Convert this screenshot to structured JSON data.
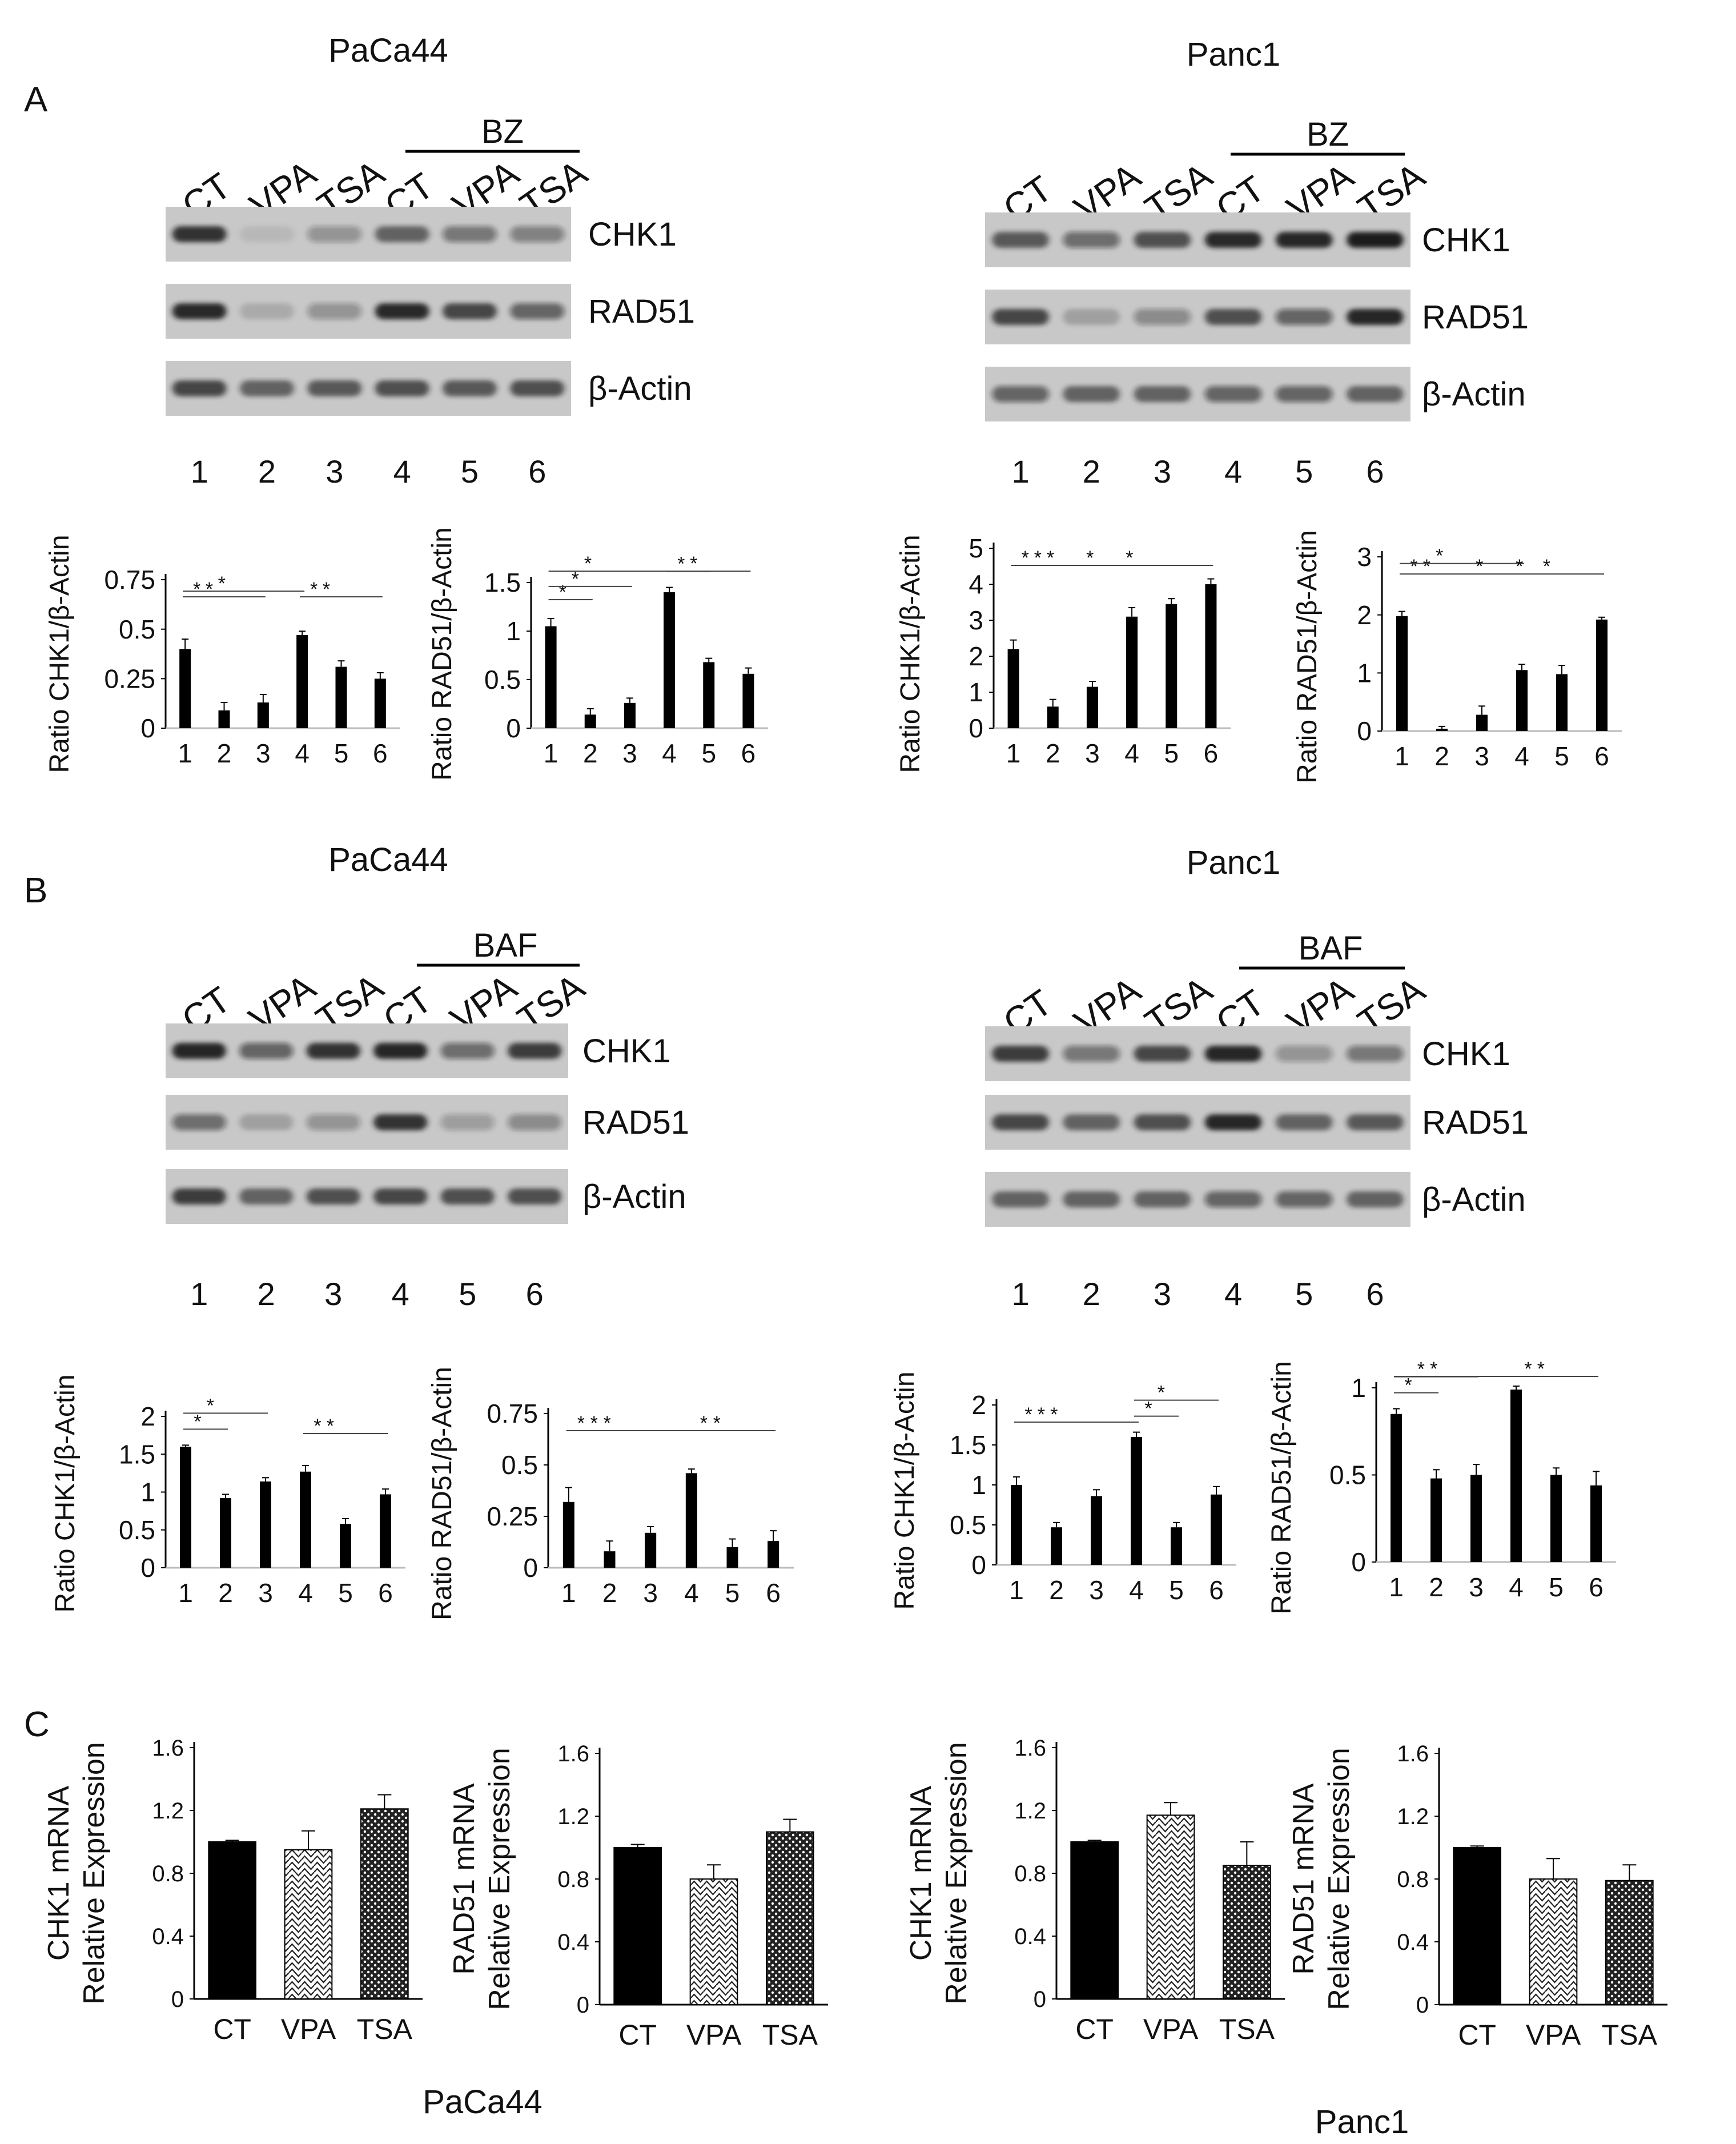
{
  "panel_labels": [
    "A",
    "B",
    "C"
  ],
  "cell_lines": [
    "PaCa44",
    "Panc1"
  ],
  "lane_labels": [
    "CT",
    "VPA",
    "TSA",
    "CT",
    "VPA",
    "TSA"
  ],
  "lane_numbers": [
    "1",
    "2",
    "3",
    "4",
    "5",
    "6"
  ],
  "protein_labels": [
    "CHK1",
    "RAD51",
    "β-Actin"
  ],
  "colors": {
    "bar": "#000000",
    "sig_line": "#444444",
    "blot_bg": "#c8c8c8",
    "band": "#1a1a1a"
  },
  "blots": [
    {
      "panel": "A",
      "cell": "PaCa44",
      "treatment": "BZ",
      "intensity": {
        "CHK1": [
          0.85,
          0.08,
          0.3,
          0.6,
          0.45,
          0.4
        ],
        "RAD51": [
          0.9,
          0.15,
          0.3,
          0.9,
          0.75,
          0.55
        ],
        "β-Actin": [
          0.75,
          0.6,
          0.65,
          0.7,
          0.65,
          0.7
        ]
      }
    },
    {
      "panel": "A",
      "cell": "Panc1",
      "treatment": "BZ",
      "intensity": {
        "CHK1": [
          0.65,
          0.5,
          0.7,
          0.9,
          0.95,
          1.0
        ],
        "RAD51": [
          0.75,
          0.2,
          0.35,
          0.7,
          0.55,
          0.95
        ],
        "β-Actin": [
          0.55,
          0.6,
          0.6,
          0.55,
          0.55,
          0.6
        ]
      }
    },
    {
      "panel": "B",
      "cell": "PaCa44",
      "treatment": "BAF",
      "intensity": {
        "CHK1": [
          0.95,
          0.55,
          0.85,
          0.95,
          0.5,
          0.8
        ],
        "RAD51": [
          0.5,
          0.2,
          0.3,
          0.85,
          0.25,
          0.35
        ],
        "β-Actin": [
          0.8,
          0.6,
          0.7,
          0.75,
          0.7,
          0.7
        ]
      }
    },
    {
      "panel": "B",
      "cell": "Panc1",
      "treatment": "BAF",
      "intensity": {
        "CHK1": [
          0.8,
          0.45,
          0.75,
          0.95,
          0.3,
          0.45
        ],
        "RAD51": [
          0.75,
          0.6,
          0.7,
          0.95,
          0.6,
          0.65
        ],
        "β-Actin": [
          0.6,
          0.6,
          0.6,
          0.55,
          0.55,
          0.6
        ]
      }
    }
  ],
  "chart_data": [
    {
      "panel": "A",
      "cell": "PaCa44",
      "type": "bar",
      "ylabel": "Ratio CHK1/β-Actin",
      "categories": [
        "1",
        "2",
        "3",
        "4",
        "5",
        "6"
      ],
      "ylim": [
        0,
        0.75
      ],
      "yticks": [
        0,
        0.25,
        0.5,
        0.75
      ],
      "ytick_labels": [
        "0",
        "0.25",
        "0.5",
        "0.75"
      ],
      "values": [
        0.4,
        0.09,
        0.13,
        0.47,
        0.31,
        0.25
      ],
      "errors": [
        0.05,
        0.04,
        0.04,
        0.02,
        0.03,
        0.03
      ],
      "significance": [
        [
          1,
          2
        ],
        [
          1,
          3
        ],
        [
          1,
          4
        ],
        [
          4,
          5
        ],
        [
          4,
          6
        ]
      ]
    },
    {
      "panel": "A",
      "cell": "PaCa44",
      "type": "bar",
      "ylabel": "Ratio RAD51/β-Actin",
      "categories": [
        "1",
        "2",
        "3",
        "4",
        "5",
        "6"
      ],
      "ylim": [
        0,
        1.5
      ],
      "yticks": [
        0,
        0.5,
        1,
        1.5
      ],
      "ytick_labels": [
        "0",
        "0.5",
        "1",
        "1.5"
      ],
      "values": [
        1.05,
        0.14,
        0.26,
        1.4,
        0.68,
        0.56
      ],
      "errors": [
        0.08,
        0.06,
        0.05,
        0.05,
        0.04,
        0.06
      ],
      "significance": [
        [
          1,
          2
        ],
        [
          1,
          3
        ],
        [
          1,
          4
        ],
        [
          4,
          5
        ],
        [
          4,
          6
        ]
      ]
    },
    {
      "panel": "A",
      "cell": "Panc1",
      "type": "bar",
      "ylabel": "Ratio CHK1/β-Actin",
      "categories": [
        "1",
        "2",
        "3",
        "4",
        "5",
        "6"
      ],
      "ylim": [
        0,
        5
      ],
      "yticks": [
        0,
        1,
        2,
        3,
        4,
        5
      ],
      "ytick_labels": [
        "0",
        "1",
        "2",
        "3",
        "4",
        "5"
      ],
      "values": [
        2.2,
        0.6,
        1.15,
        3.1,
        3.45,
        4.0
      ],
      "errors": [
        0.25,
        0.2,
        0.15,
        0.25,
        0.15,
        0.15
      ],
      "significance": [
        [
          1,
          2
        ],
        [
          1,
          3
        ],
        [
          1,
          4
        ],
        [
          2,
          5
        ],
        [
          3,
          6
        ]
      ]
    },
    {
      "panel": "A",
      "cell": "Panc1",
      "type": "bar",
      "ylabel": "Ratio RAD51/β-Actin",
      "categories": [
        "1",
        "2",
        "3",
        "4",
        "5",
        "6"
      ],
      "ylim": [
        0,
        3
      ],
      "yticks": [
        0,
        1,
        2,
        3
      ],
      "ytick_labels": [
        "0",
        "1",
        "2",
        "3"
      ],
      "values": [
        1.98,
        0.04,
        0.28,
        1.05,
        0.98,
        1.92
      ],
      "errors": [
        0.08,
        0.04,
        0.15,
        0.1,
        0.15,
        0.04
      ],
      "significance": [
        [
          1,
          2
        ],
        [
          1,
          3
        ],
        [
          1,
          4
        ],
        [
          2,
          5
        ],
        [
          3,
          6
        ],
        [
          4,
          6
        ]
      ]
    },
    {
      "panel": "B",
      "cell": "PaCa44",
      "type": "bar",
      "ylabel": "Ratio CHK1/β-Actin",
      "categories": [
        "1",
        "2",
        "3",
        "4",
        "5",
        "6"
      ],
      "ylim": [
        0,
        2
      ],
      "yticks": [
        0,
        0.5,
        1,
        1.5,
        2
      ],
      "ytick_labels": [
        "0",
        "0.5",
        "1",
        "1.5",
        "2"
      ],
      "values": [
        1.6,
        0.92,
        1.14,
        1.27,
        0.58,
        0.97
      ],
      "errors": [
        0.02,
        0.05,
        0.05,
        0.08,
        0.07,
        0.07
      ],
      "significance": [
        [
          1,
          2
        ],
        [
          1,
          3
        ],
        [
          4,
          5
        ],
        [
          4,
          6
        ]
      ]
    },
    {
      "panel": "B",
      "cell": "PaCa44",
      "type": "bar",
      "ylabel": "Ratio RAD51/β-Actin",
      "categories": [
        "1",
        "2",
        "3",
        "4",
        "5",
        "6"
      ],
      "ylim": [
        0,
        0.75
      ],
      "yticks": [
        0,
        0.25,
        0.5,
        0.75
      ],
      "ytick_labels": [
        "0",
        "0.25",
        "0.5",
        "0.75"
      ],
      "values": [
        0.32,
        0.08,
        0.17,
        0.46,
        0.1,
        0.13
      ],
      "errors": [
        0.07,
        0.05,
        0.03,
        0.02,
        0.04,
        0.05
      ],
      "significance": [
        [
          1,
          2
        ],
        [
          1,
          3
        ],
        [
          1,
          4
        ],
        [
          4,
          5
        ],
        [
          4,
          6
        ]
      ]
    },
    {
      "panel": "B",
      "cell": "Panc1",
      "type": "bar",
      "ylabel": "Ratio CHK1/β-Actin",
      "categories": [
        "1",
        "2",
        "3",
        "4",
        "5",
        "6"
      ],
      "ylim": [
        0,
        2
      ],
      "yticks": [
        0,
        0.5,
        1,
        1.5,
        2
      ],
      "ytick_labels": [
        "0",
        "0.5",
        "1",
        "1.5",
        "2"
      ],
      "values": [
        1.0,
        0.47,
        0.86,
        1.6,
        0.47,
        0.88
      ],
      "errors": [
        0.1,
        0.06,
        0.08,
        0.06,
        0.06,
        0.1
      ],
      "significance": [
        [
          1,
          2
        ],
        [
          1,
          3
        ],
        [
          1,
          4
        ],
        [
          4,
          5
        ],
        [
          4,
          6
        ]
      ]
    },
    {
      "panel": "B",
      "cell": "Panc1",
      "type": "bar",
      "ylabel": "Ratio RAD51/β-Actin",
      "categories": [
        "1",
        "2",
        "3",
        "4",
        "5",
        "6"
      ],
      "ylim": [
        0,
        1
      ],
      "yticks": [
        0,
        0.5,
        1
      ],
      "ytick_labels": [
        "0",
        "0.5",
        "1"
      ],
      "values": [
        0.85,
        0.48,
        0.5,
        0.99,
        0.5,
        0.44
      ],
      "errors": [
        0.03,
        0.05,
        0.06,
        0.02,
        0.04,
        0.08
      ],
      "significance": [
        [
          1,
          2
        ],
        [
          1,
          3
        ],
        [
          1,
          4
        ],
        [
          4,
          5
        ],
        [
          4,
          6
        ]
      ]
    },
    {
      "panel": "C",
      "cell": "PaCa44",
      "type": "bar",
      "ylabel": "CHK1 mRNA",
      "ylabel2": "Relative Expression",
      "categories": [
        "CT",
        "VPA",
        "TSA"
      ],
      "ylim": [
        0,
        1.6
      ],
      "yticks": [
        0,
        0.4,
        0.8,
        1.2,
        1.6
      ],
      "ytick_labels": [
        "0",
        "0.4",
        "0.8",
        "1.2",
        "1.6"
      ],
      "values": [
        1.0,
        0.95,
        1.21
      ],
      "errors": [
        0.01,
        0.12,
        0.09
      ],
      "patterns": [
        "solid",
        "hatch",
        "dots"
      ]
    },
    {
      "panel": "C",
      "cell": "PaCa44",
      "type": "bar",
      "ylabel": "RAD51 mRNA",
      "ylabel2": "Relative Expression",
      "categories": [
        "CT",
        "VPA",
        "TSA"
      ],
      "ylim": [
        0,
        1.6
      ],
      "yticks": [
        0,
        0.4,
        0.8,
        1.2,
        1.6
      ],
      "ytick_labels": [
        "0",
        "0.4",
        "0.8",
        "1.2",
        "1.6"
      ],
      "values": [
        1.0,
        0.8,
        1.1
      ],
      "errors": [
        0.02,
        0.09,
        0.08
      ],
      "patterns": [
        "solid",
        "hatch",
        "dots"
      ]
    },
    {
      "panel": "C",
      "cell": "Panc1",
      "type": "bar",
      "ylabel": "CHK1 mRNA",
      "ylabel2": "Relative Expression",
      "categories": [
        "CT",
        "VPA",
        "TSA"
      ],
      "ylim": [
        0,
        1.6
      ],
      "yticks": [
        0,
        0.4,
        0.8,
        1.2,
        1.6
      ],
      "ytick_labels": [
        "0",
        "0.4",
        "0.8",
        "1.2",
        "1.6"
      ],
      "values": [
        1.0,
        1.17,
        0.85
      ],
      "errors": [
        0.01,
        0.08,
        0.15
      ],
      "patterns": [
        "solid",
        "hatch",
        "dots"
      ]
    },
    {
      "panel": "C",
      "cell": "Panc1",
      "type": "bar",
      "ylabel": "RAD51 mRNA",
      "ylabel2": "Relative Expression",
      "categories": [
        "CT",
        "VPA",
        "TSA"
      ],
      "ylim": [
        0,
        1.6
      ],
      "yticks": [
        0,
        0.4,
        0.8,
        1.2,
        1.6
      ],
      "ytick_labels": [
        "0",
        "0.4",
        "0.8",
        "1.2",
        "1.6"
      ],
      "values": [
        1.0,
        0.8,
        0.79
      ],
      "errors": [
        0.01,
        0.13,
        0.1
      ],
      "patterns": [
        "solid",
        "hatch",
        "dots"
      ]
    }
  ]
}
